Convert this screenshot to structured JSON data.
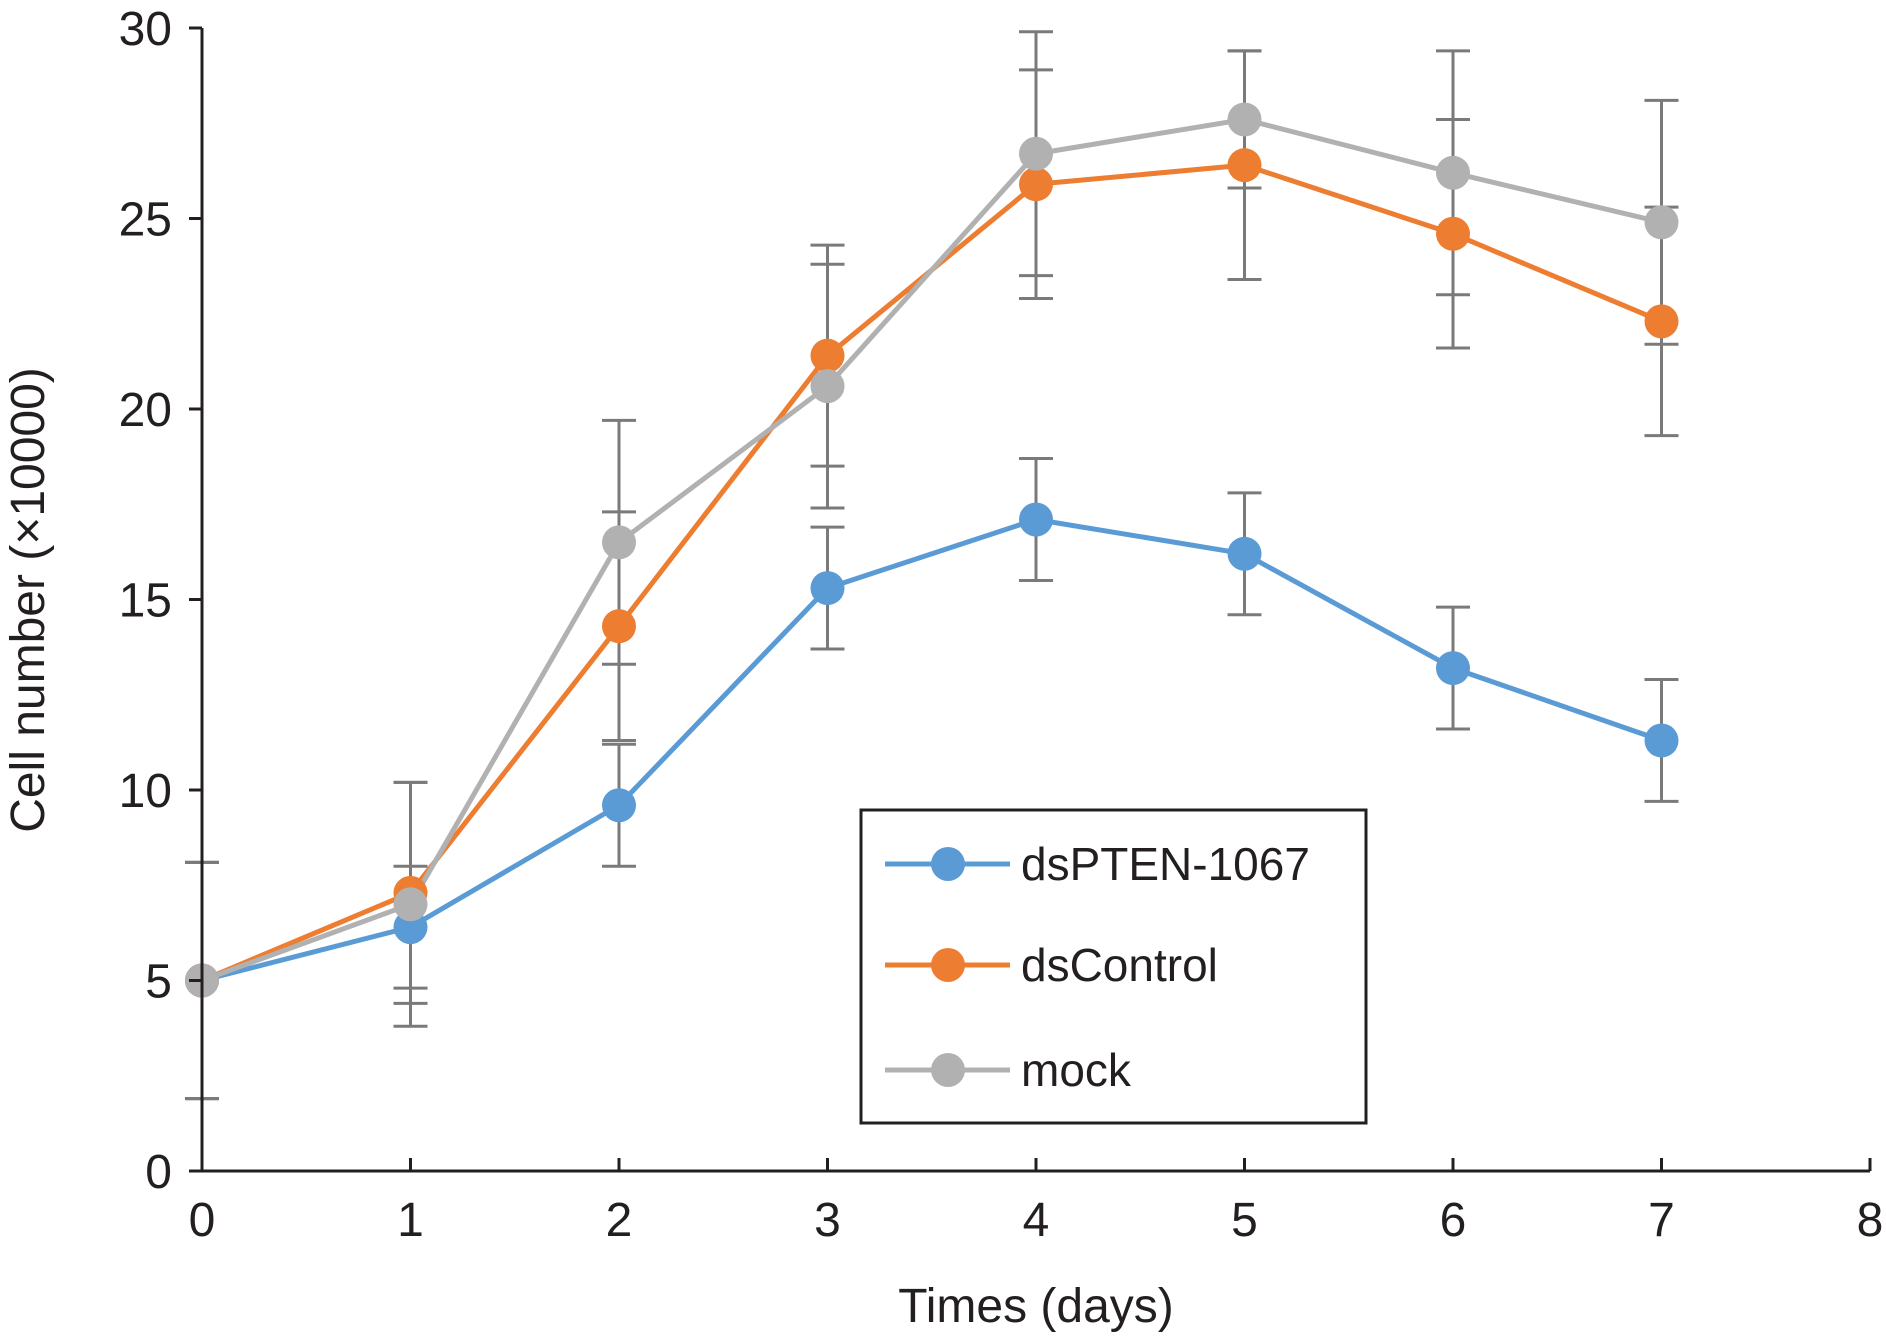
{
  "chart_data": {
    "type": "line",
    "title": "",
    "xlabel": "Times (days)",
    "ylabel": "Cell number (×10000)",
    "xlim": [
      0,
      8
    ],
    "ylim": [
      0,
      30
    ],
    "xticks": [
      0,
      1,
      2,
      3,
      4,
      5,
      6,
      7,
      8
    ],
    "yticks": [
      0,
      5,
      10,
      15,
      20,
      25,
      30
    ],
    "grid": false,
    "legend_position": "center-bottom",
    "x": [
      0,
      1,
      2,
      3,
      4,
      5,
      6,
      7
    ],
    "error_bar_color": "#7a7a7a",
    "series": [
      {
        "name": "dsPTEN-1067",
        "color": "#5b9bd5",
        "values": [
          5.0,
          6.4,
          9.6,
          15.3,
          17.1,
          16.2,
          13.2,
          11.3
        ],
        "errors": [
          3.1,
          1.6,
          1.6,
          1.6,
          1.6,
          1.6,
          1.6,
          1.6
        ]
      },
      {
        "name": "dsControl",
        "color": "#ed7d31",
        "values": [
          5.0,
          7.3,
          14.3,
          21.4,
          25.9,
          26.4,
          24.6,
          22.3
        ],
        "errors": [
          3.1,
          2.9,
          3.0,
          2.9,
          3.0,
          3.0,
          3.0,
          3.0
        ]
      },
      {
        "name": "mock",
        "color": "#b1b1b1",
        "values": [
          5.0,
          7.0,
          16.5,
          20.6,
          26.7,
          27.6,
          26.2,
          24.9
        ],
        "errors": [
          3.1,
          3.2,
          3.2,
          3.2,
          3.2,
          1.8,
          3.2,
          3.2
        ]
      }
    ]
  }
}
